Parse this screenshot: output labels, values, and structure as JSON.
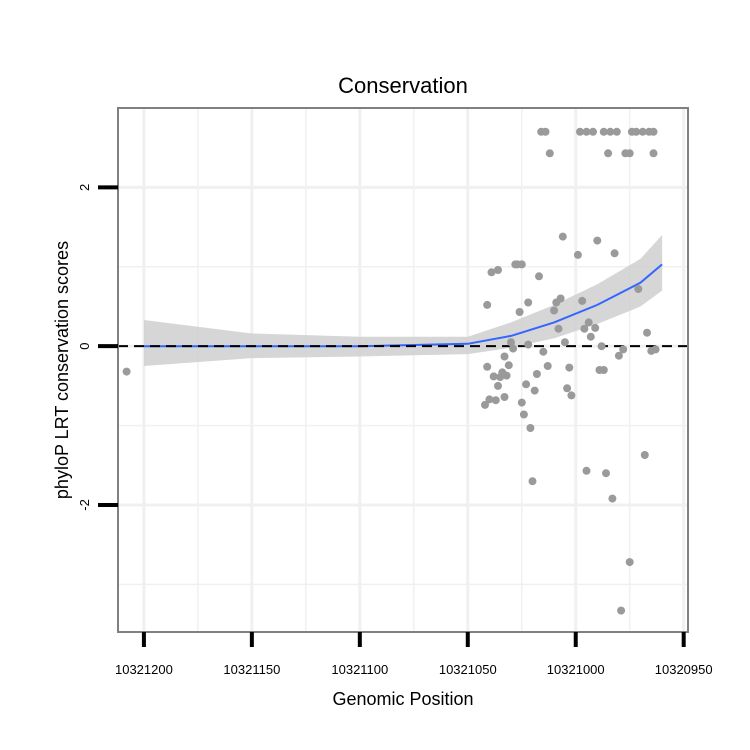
{
  "chart_data": {
    "type": "scatter",
    "title": "Conservation",
    "xlabel": "Genomic Position",
    "ylabel": "phyloP LRT conservation scores",
    "x_reversed": true,
    "xlim": [
      10321212,
      10320948
    ],
    "ylim": [
      -3.6,
      3.0
    ],
    "x_ticks": [
      10321200,
      10321150,
      10321100,
      10321050,
      10321000,
      10320950
    ],
    "x_tick_labels": [
      "10321200",
      "10321150",
      "10321100",
      "10321050",
      "10321000",
      "10320950"
    ],
    "y_ticks": [
      2,
      0,
      -2
    ],
    "y_tick_labels": [
      "2",
      "0",
      "-2"
    ],
    "y_minor_gridlines": [
      1,
      -1,
      -3
    ],
    "x_minor_gridlines": [
      10321175,
      10321125,
      10321075,
      10321025,
      10320975
    ],
    "reference_line": {
      "y": 0,
      "style": "dashed",
      "color": "#000000"
    },
    "colors": {
      "points": "#9a9a9a",
      "smooth": "#3366ff",
      "ribbon": "#cfcfcf",
      "panel_border": "#808080",
      "grid": "#f0f0f0"
    },
    "points": [
      {
        "x": 10321208,
        "y": -0.32
      },
      {
        "x": 10321042,
        "y": -0.74
      },
      {
        "x": 10321041,
        "y": 0.52
      },
      {
        "x": 10321041,
        "y": -0.26
      },
      {
        "x": 10321040,
        "y": -0.67
      },
      {
        "x": 10321039,
        "y": 0.93
      },
      {
        "x": 10321038,
        "y": -0.38
      },
      {
        "x": 10321037,
        "y": -0.68
      },
      {
        "x": 10321036,
        "y": 0.96
      },
      {
        "x": 10321036,
        "y": -0.5
      },
      {
        "x": 10321035,
        "y": -0.39
      },
      {
        "x": 10321034,
        "y": -0.33
      },
      {
        "x": 10321033,
        "y": -0.64
      },
      {
        "x": 10321033,
        "y": -0.13
      },
      {
        "x": 10321032,
        "y": -0.37
      },
      {
        "x": 10321031,
        "y": -0.24
      },
      {
        "x": 10321030,
        "y": 0.05
      },
      {
        "x": 10321029,
        "y": -0.03
      },
      {
        "x": 10321028,
        "y": 1.03
      },
      {
        "x": 10321027,
        "y": 1.03
      },
      {
        "x": 10321026,
        "y": 0.43
      },
      {
        "x": 10321025,
        "y": 1.03
      },
      {
        "x": 10321025,
        "y": -0.71
      },
      {
        "x": 10321024,
        "y": -0.86
      },
      {
        "x": 10321023,
        "y": -0.48
      },
      {
        "x": 10321022,
        "y": 0.02
      },
      {
        "x": 10321022,
        "y": 0.55
      },
      {
        "x": 10321021,
        "y": -1.03
      },
      {
        "x": 10321020,
        "y": -1.7
      },
      {
        "x": 10321019,
        "y": -0.56
      },
      {
        "x": 10321018,
        "y": -0.35
      },
      {
        "x": 10321017,
        "y": 0.88
      },
      {
        "x": 10321016,
        "y": 2.7
      },
      {
        "x": 10321015,
        "y": -0.07
      },
      {
        "x": 10321014,
        "y": 2.7
      },
      {
        "x": 10321013,
        "y": -0.25
      },
      {
        "x": 10321012,
        "y": 2.43
      },
      {
        "x": 10321010,
        "y": 0.45
      },
      {
        "x": 10321009,
        "y": 0.55
      },
      {
        "x": 10321008,
        "y": 0.22
      },
      {
        "x": 10321007,
        "y": 0.6
      },
      {
        "x": 10321006,
        "y": 1.38
      },
      {
        "x": 10321005,
        "y": 0.05
      },
      {
        "x": 10321004,
        "y": -0.53
      },
      {
        "x": 10321003,
        "y": -0.27
      },
      {
        "x": 10321002,
        "y": -0.62
      },
      {
        "x": 10320999,
        "y": 1.15
      },
      {
        "x": 10320998,
        "y": 2.7
      },
      {
        "x": 10320997,
        "y": 0.57
      },
      {
        "x": 10320996,
        "y": 0.22
      },
      {
        "x": 10320995,
        "y": -1.57
      },
      {
        "x": 10320995,
        "y": 2.7
      },
      {
        "x": 10320994,
        "y": 0.3
      },
      {
        "x": 10320993,
        "y": 0.12
      },
      {
        "x": 10320992,
        "y": 2.7
      },
      {
        "x": 10320991,
        "y": 0.23
      },
      {
        "x": 10320990,
        "y": 1.33
      },
      {
        "x": 10320989,
        "y": -0.3
      },
      {
        "x": 10320988,
        "y": 0.0
      },
      {
        "x": 10320987,
        "y": -0.3
      },
      {
        "x": 10320987,
        "y": 2.7
      },
      {
        "x": 10320986,
        "y": -1.6
      },
      {
        "x": 10320985,
        "y": 2.43
      },
      {
        "x": 10320984,
        "y": 2.7
      },
      {
        "x": 10320983,
        "y": -1.92
      },
      {
        "x": 10320982,
        "y": 1.17
      },
      {
        "x": 10320981,
        "y": 2.7
      },
      {
        "x": 10320980,
        "y": -0.12
      },
      {
        "x": 10320979,
        "y": -3.33
      },
      {
        "x": 10320978,
        "y": -0.04
      },
      {
        "x": 10320977,
        "y": 2.43
      },
      {
        "x": 10320975,
        "y": 2.43
      },
      {
        "x": 10320975,
        "y": -2.72
      },
      {
        "x": 10320974,
        "y": 2.7
      },
      {
        "x": 10320972,
        "y": 2.7
      },
      {
        "x": 10320971,
        "y": 0.72
      },
      {
        "x": 10320969,
        "y": 2.7
      },
      {
        "x": 10320968,
        "y": -1.37
      },
      {
        "x": 10320967,
        "y": 0.17
      },
      {
        "x": 10320966,
        "y": 2.7
      },
      {
        "x": 10320965,
        "y": -0.06
      },
      {
        "x": 10320964,
        "y": 2.43
      },
      {
        "x": 10320964,
        "y": 2.7
      },
      {
        "x": 10320963,
        "y": -0.04
      }
    ],
    "smooth": {
      "x": [
        10321200,
        10321150,
        10321100,
        10321050,
        10321030,
        10321010,
        10320990,
        10320970,
        10320960
      ],
      "y": [
        0.0,
        0.0,
        0.0,
        0.03,
        0.13,
        0.3,
        0.52,
        0.8,
        1.03
      ],
      "lower": [
        -0.25,
        -0.15,
        -0.13,
        -0.1,
        -0.02,
        0.1,
        0.28,
        0.5,
        0.7
      ],
      "upper": [
        0.33,
        0.16,
        0.12,
        0.12,
        0.3,
        0.52,
        0.78,
        1.1,
        1.4
      ]
    }
  }
}
